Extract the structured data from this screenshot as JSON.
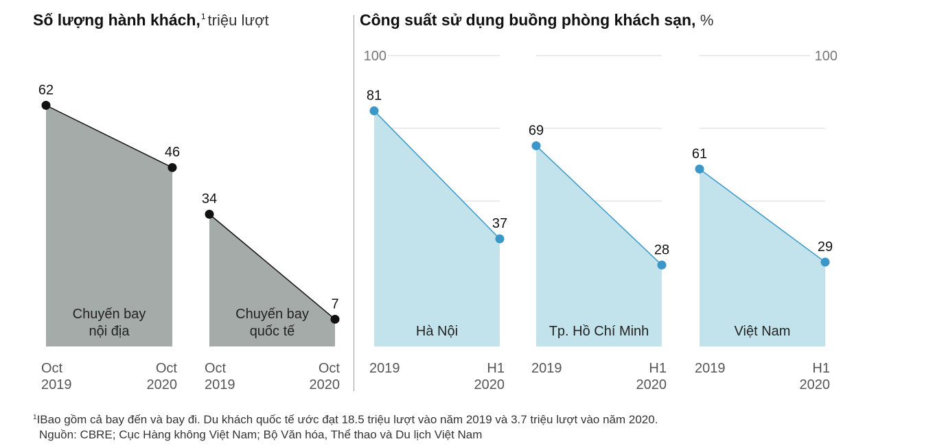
{
  "left_title": {
    "main": "Số lượng hành khách,",
    "sup": "1",
    "unit": "triệu lượt"
  },
  "right_title": {
    "main": "Công suất sử dụng buồng phòng khách sạn,",
    "unit": "%"
  },
  "footnote": {
    "sup": "1",
    "text": "IBao gồm cả bay đến và bay đi. Du khách quốc tế ước đạt 18.5 triệu lượt vào năm 2019 và 3.7 triệu lượt vào năm 2020."
  },
  "source": "Nguồn: CBRE; Cục Hàng không Việt Nam; Bộ Văn hóa, Thể thao và Du lịch Việt Nam",
  "colors": {
    "passenger_fill": "#a4aba9",
    "passenger_line": "#111111",
    "hotel_fill": "#c2e3eb",
    "hotel_line": "#3a97c8",
    "grid": "#d7d7d7",
    "divider": "#999999"
  },
  "chart_data": [
    {
      "type": "area",
      "title": "Số lượng hành khách",
      "unit": "triệu lượt",
      "series": [
        {
          "name": "Chuyến bay nội địa",
          "x": [
            "Oct 2019",
            "Oct 2020"
          ],
          "values": [
            62,
            46
          ]
        },
        {
          "name": "Chuyến bay quốc tế",
          "x": [
            "Oct 2019",
            "Oct 2020"
          ],
          "values": [
            34,
            7
          ]
        }
      ],
      "ylim": [
        0,
        72
      ],
      "grid": false
    },
    {
      "type": "area",
      "title": "Công suất sử dụng buồng phòng khách sạn",
      "unit": "%",
      "series": [
        {
          "name": "Hà Nội",
          "x": [
            "2019",
            "H1 2020"
          ],
          "values": [
            81,
            37
          ]
        },
        {
          "name": "Tp. Hồ Chí Minh",
          "x": [
            "2019",
            "H1 2020"
          ],
          "values": [
            69,
            28
          ]
        },
        {
          "name": "Việt Nam",
          "x": [
            "2019",
            "H1 2020"
          ],
          "values": [
            61,
            29
          ]
        }
      ],
      "ylim": [
        0,
        100
      ],
      "yticks": [
        100
      ],
      "grid": true
    }
  ],
  "panel_labels": [
    {
      "lines": [
        "Chuyến bay",
        "nội địa"
      ]
    },
    {
      "lines": [
        "Chuyến bay",
        "quốc tế"
      ]
    },
    {
      "lines": [
        "Hà Nội"
      ]
    },
    {
      "lines": [
        "Tp. Hồ Chí Minh"
      ]
    },
    {
      "lines": [
        "Việt Nam"
      ]
    }
  ],
  "x_labels": [
    {
      "start": [
        "Oct",
        "2019"
      ],
      "end": [
        "Oct",
        "2020"
      ]
    },
    {
      "start": [
        "Oct",
        "2019"
      ],
      "end": [
        "Oct",
        "2020"
      ]
    },
    {
      "start": [
        "2019"
      ],
      "end": [
        "H1",
        "2020"
      ]
    },
    {
      "start": [
        "2019"
      ],
      "end": [
        "H1",
        "2020"
      ]
    },
    {
      "start": [
        "2019"
      ],
      "end": [
        "H1",
        "2020"
      ]
    }
  ],
  "tick_label_100": "100"
}
